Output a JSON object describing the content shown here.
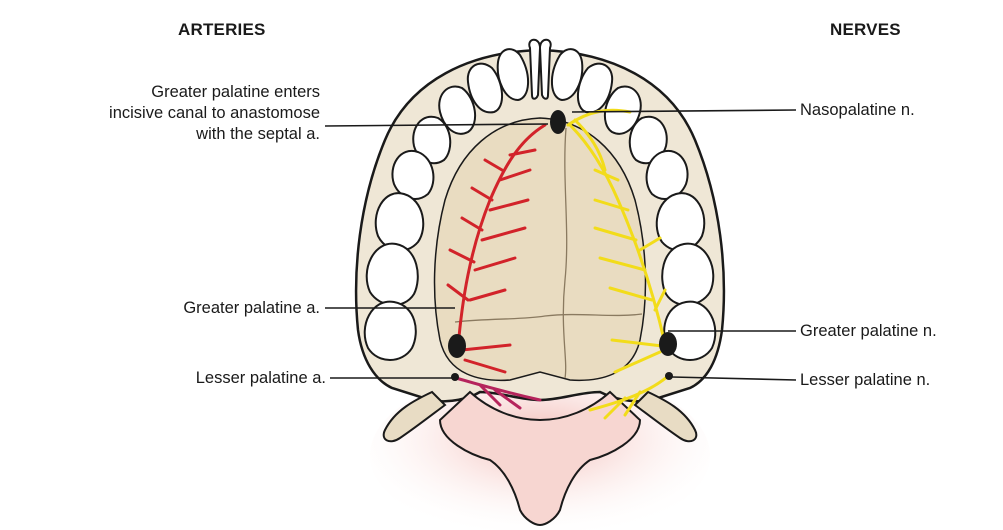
{
  "headings": {
    "arteries": "ARTERIES",
    "nerves": "NERVES"
  },
  "labels": {
    "greater_palatine_incisive": [
      "Greater palatine enters",
      "incisive canal to anastomose",
      "with the septal a."
    ],
    "nasopalatine_n": "Nasopalatine n.",
    "greater_palatine_a": "Greater palatine a.",
    "greater_palatine_n": "Greater palatine n.",
    "lesser_palatine_a": "Lesser palatine a.",
    "lesser_palatine_n": "Lesser palatine n."
  },
  "colors": {
    "artery": "#d2232a",
    "lesser_artery": "#b5245c",
    "nerve": "#f2dc1a",
    "palate": "#ece2cf",
    "soft_tissue": "#f6cdc8",
    "outline": "#1a1a1a"
  }
}
